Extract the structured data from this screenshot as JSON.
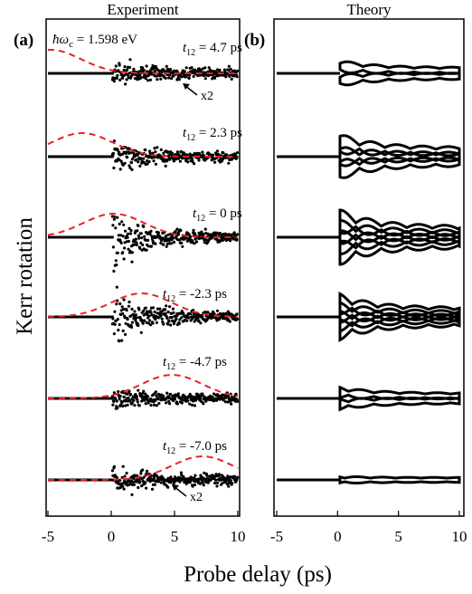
{
  "figure": {
    "xlabel": "Probe delay (ps)",
    "ylabel": "Kerr rotation",
    "x_ticks": [
      "-5",
      "0",
      "5",
      "10"
    ]
  },
  "chart_data": [
    {
      "type": "line",
      "panel_label": "(a)",
      "title": "Experiment",
      "annotation": "ħω",
      "annotation_subscript": "c",
      "annotation_value": " = 1.598 eV",
      "xlabel": "Probe delay (ps)",
      "ylabel": "Kerr rotation",
      "xlim": [
        -5,
        10
      ],
      "x_ticks": [
        -5,
        0,
        5,
        10
      ],
      "traces": [
        {
          "t12_value": "= 4.7 ps",
          "scale_note": "x2",
          "pulse_center": -4.8
        },
        {
          "t12_value": "= 2.3 ps",
          "pulse_center": -2.3
        },
        {
          "t12_value": "= 0 ps",
          "pulse_center": 0.2
        },
        {
          "t12_value": "= -2.3 ps",
          "pulse_center": 2.4
        },
        {
          "t12_value": "= -4.7 ps",
          "pulse_center": 4.8
        },
        {
          "t12_value": "= -7.0 ps",
          "scale_note": "x2",
          "pulse_center": 7.2
        }
      ],
      "pulse_color": "#e8202a",
      "data_color": "#000000"
    },
    {
      "type": "line",
      "panel_label": "(b)",
      "title": "Theory",
      "xlabel": "Probe delay (ps)",
      "xlim": [
        -5,
        10
      ],
      "x_ticks": [
        -5,
        0,
        5,
        10
      ],
      "traces": [
        {
          "pulse_center": -4.8
        },
        {
          "pulse_center": -2.3
        },
        {
          "pulse_center": 0.2
        },
        {
          "pulse_center": 2.4
        },
        {
          "pulse_center": 4.8
        },
        {
          "pulse_center": 7.2
        }
      ],
      "data_color": "#000000"
    }
  ]
}
